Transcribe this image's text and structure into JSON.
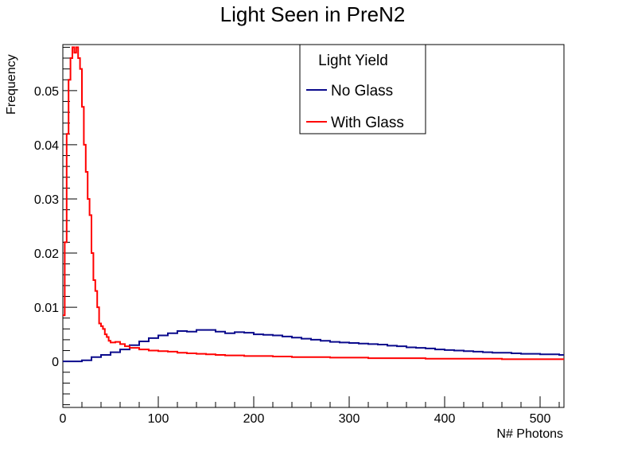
{
  "chart_data": {
    "type": "line",
    "title": "Light Seen in PreN2",
    "xlabel": "N# Photons",
    "ylabel": "Frequency",
    "xlim": [
      0,
      525
    ],
    "ylim": [
      -0.0085,
      0.0585
    ],
    "xticks": [
      0,
      100,
      200,
      300,
      400,
      500
    ],
    "xtick_labels": [
      "0",
      "100",
      "200",
      "300",
      "400",
      "500"
    ],
    "yticks": [
      0,
      0.01,
      0.02,
      0.03,
      0.04,
      0.05
    ],
    "ytick_labels": [
      "0",
      "0.01",
      "0.02",
      "0.03",
      "0.04",
      "0.05"
    ],
    "grid": false,
    "legend": {
      "title": "Light Yield",
      "placement": "top-center"
    },
    "series": [
      {
        "name": "No Glass",
        "color": "#0a0a8c",
        "style": "step",
        "x": [
          0,
          10,
          20,
          30,
          40,
          50,
          60,
          70,
          80,
          90,
          100,
          110,
          120,
          130,
          140,
          150,
          160,
          170,
          180,
          190,
          200,
          210,
          220,
          230,
          240,
          250,
          260,
          270,
          280,
          290,
          300,
          310,
          320,
          330,
          340,
          350,
          360,
          370,
          380,
          390,
          400,
          410,
          420,
          430,
          440,
          450,
          460,
          470,
          480,
          490,
          500,
          510,
          520
        ],
        "y": [
          0,
          0,
          0.0002,
          0.0008,
          0.0012,
          0.0017,
          0.0022,
          0.003,
          0.0037,
          0.0043,
          0.0048,
          0.0052,
          0.0056,
          0.0055,
          0.0058,
          0.0058,
          0.0055,
          0.0052,
          0.0054,
          0.0053,
          0.005,
          0.0049,
          0.0048,
          0.0046,
          0.0044,
          0.0042,
          0.004,
          0.0038,
          0.0036,
          0.0035,
          0.0034,
          0.0033,
          0.0032,
          0.0031,
          0.0029,
          0.0028,
          0.0026,
          0.0025,
          0.0024,
          0.0022,
          0.0021,
          0.002,
          0.0019,
          0.0018,
          0.0017,
          0.0016,
          0.0016,
          0.0015,
          0.0014,
          0.0014,
          0.0013,
          0.0013,
          0.0012
        ]
      },
      {
        "name": "With Glass",
        "color": "#ff0000",
        "style": "step",
        "x": [
          0,
          2,
          4,
          6,
          8,
          10,
          12,
          14,
          16,
          18,
          20,
          22,
          24,
          26,
          28,
          30,
          32,
          34,
          36,
          38,
          40,
          42,
          44,
          46,
          48,
          50,
          55,
          60,
          65,
          70,
          80,
          90,
          100,
          110,
          120,
          130,
          140,
          150,
          160,
          170,
          180,
          190,
          200,
          220,
          240,
          260,
          280,
          300,
          320,
          340,
          360,
          380,
          400,
          420,
          440,
          460,
          480,
          500,
          520
        ],
        "y": [
          0.0085,
          0.022,
          0.042,
          0.052,
          0.056,
          0.058,
          0.057,
          0.058,
          0.056,
          0.054,
          0.047,
          0.04,
          0.035,
          0.03,
          0.027,
          0.02,
          0.015,
          0.013,
          0.01,
          0.007,
          0.0065,
          0.006,
          0.005,
          0.0045,
          0.0038,
          0.0035,
          0.0036,
          0.0032,
          0.0028,
          0.0025,
          0.0022,
          0.002,
          0.0019,
          0.0018,
          0.0016,
          0.0015,
          0.0014,
          0.0013,
          0.0012,
          0.0011,
          0.0011,
          0.001,
          0.001,
          0.0009,
          0.0008,
          0.0008,
          0.0007,
          0.0007,
          0.0006,
          0.0006,
          0.0006,
          0.0005,
          0.0005,
          0.0005,
          0.0005,
          0.0004,
          0.0004,
          0.0004,
          0.0004
        ]
      }
    ]
  }
}
